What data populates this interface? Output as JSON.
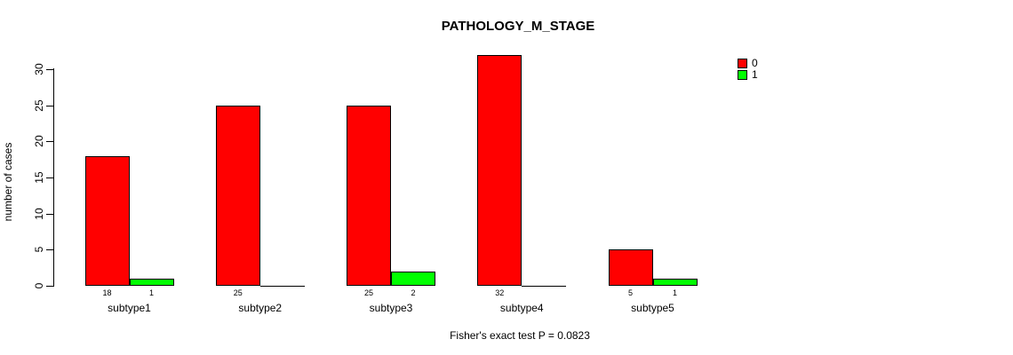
{
  "title": "PATHOLOGY_M_STAGE",
  "footer": "Fisher's exact test P = 0.0823",
  "y_axis": {
    "label": "number of cases",
    "ticks": [
      0,
      5,
      10,
      15,
      20,
      25,
      30
    ]
  },
  "legend": {
    "items": [
      {
        "label": "0",
        "color": "#ff0000"
      },
      {
        "label": "1",
        "color": "#00ff00"
      }
    ]
  },
  "chart_data": {
    "type": "bar",
    "title": "PATHOLOGY_M_STAGE",
    "categories": [
      "subtype1",
      "subtype2",
      "subtype3",
      "subtype4",
      "subtype5"
    ],
    "series": [
      {
        "name": "0",
        "color": "#ff0000",
        "values": [
          18,
          25,
          25,
          32,
          5
        ]
      },
      {
        "name": "1",
        "color": "#00ff00",
        "values": [
          1,
          0,
          2,
          0,
          1
        ]
      }
    ],
    "xlabel": "",
    "ylabel": "number of cases",
    "ylim": [
      0,
      30
    ],
    "yticks": [
      0,
      5,
      10,
      15,
      20,
      25,
      30
    ],
    "grid": false,
    "legend_position": "top-right",
    "bar_value_labels": "shown under each nonzero bar",
    "annotation": "Fisher's exact test P = 0.0823"
  }
}
